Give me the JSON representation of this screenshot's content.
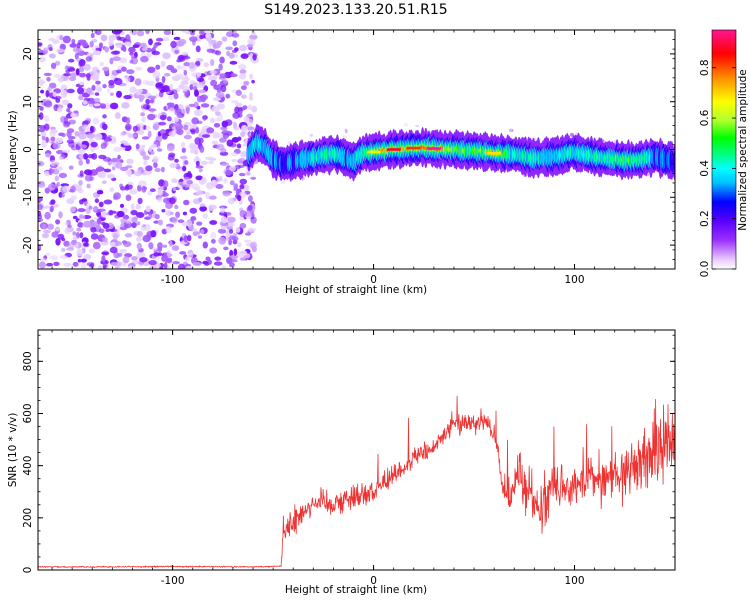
{
  "title": "S149.2023.133.20.51.R15",
  "chart_data": [
    {
      "type": "heatmap",
      "xlabel": "Height of straight line (km)",
      "ylabel": "Frequency (Hz)",
      "xlim": [
        -167,
        150
      ],
      "ylim": [
        -25,
        25
      ],
      "xticks": [
        -100,
        0,
        100
      ],
      "yticks": [
        -20,
        -10,
        0,
        10,
        20
      ],
      "colorbar": {
        "label": "Normalized spectral amplitude",
        "range": [
          0,
          0.95
        ],
        "ticks": [
          0.0,
          0.2,
          0.4,
          0.6,
          0.8
        ],
        "tick_labels": [
          "0.0",
          "0.2",
          "0.4",
          "0.6",
          "0.8"
        ],
        "colormap": [
          "#ffffff",
          "#e9c9ff",
          "#9b30ff",
          "#5a00ff",
          "#0000ff",
          "#00bfff",
          "#00ffff",
          "#00ff7f",
          "#00ff00",
          "#adff2f",
          "#ffff00",
          "#ff8c00",
          "#ff0000",
          "#ff1493"
        ]
      },
      "ridge": {
        "x": [
          -62,
          -58,
          -54,
          -50,
          -45,
          -40,
          -35,
          -30,
          -25,
          -20,
          -15,
          -10,
          -5,
          0,
          10,
          20,
          30,
          40,
          50,
          60,
          70,
          80,
          90,
          100,
          110,
          120,
          130,
          140,
          150
        ],
        "y": [
          -1,
          1.5,
          0.5,
          -2,
          -3,
          -2.5,
          -2,
          -1.8,
          -1.2,
          -0.8,
          -1.5,
          -2.5,
          -0.8,
          -0.5,
          0,
          0.3,
          0.2,
          0,
          -0.3,
          -0.8,
          -1,
          -1.8,
          -1.5,
          -0.5,
          -1.5,
          -2,
          -2.3,
          -1.5,
          -2.5
        ],
        "peak_amplitude": [
          0.35,
          0.45,
          0.4,
          0.35,
          0.3,
          0.35,
          0.4,
          0.45,
          0.45,
          0.5,
          0.4,
          0.35,
          0.5,
          0.7,
          0.9,
          0.85,
          0.95,
          0.6,
          0.55,
          0.75,
          0.5,
          0.45,
          0.4,
          0.45,
          0.5,
          0.55,
          0.6,
          0.35,
          0.3
        ]
      },
      "noise_region_x": [
        -167,
        -62
      ]
    },
    {
      "type": "line",
      "xlabel": "Height of straight line (km)",
      "ylabel": "SNR (10 * v/v)",
      "xlim": [
        -167,
        150
      ],
      "ylim": [
        0,
        920
      ],
      "xticks": [
        -100,
        0,
        100
      ],
      "yticks": [
        0,
        200,
        400,
        600,
        800
      ],
      "color": "#ee3333",
      "series": [
        {
          "x": [
            -167,
            -150,
            -100,
            -60,
            -46,
            -45,
            -40,
            -35,
            -30,
            -20,
            -10,
            0,
            10,
            15,
            20,
            30,
            40,
            50,
            55,
            60,
            62,
            64,
            68,
            72,
            75,
            78,
            80,
            85,
            90,
            95,
            100,
            105,
            110,
            115,
            120,
            125,
            130,
            135,
            140,
            145,
            150
          ],
          "y": [
            12,
            12,
            13,
            12,
            15,
            150,
            180,
            230,
            260,
            260,
            280,
            300,
            370,
            390,
            430,
            470,
            560,
            570,
            575,
            520,
            420,
            330,
            260,
            400,
            280,
            300,
            260,
            270,
            350,
            300,
            310,
            340,
            360,
            340,
            370,
            380,
            400,
            430,
            460,
            480,
            500
          ],
          "noise_amplitude": [
            3,
            3,
            3,
            3,
            3,
            80,
            80,
            80,
            70,
            70,
            70,
            60,
            60,
            60,
            60,
            60,
            60,
            60,
            50,
            50,
            60,
            90,
            90,
            120,
            130,
            130,
            130,
            140,
            120,
            110,
            110,
            100,
            110,
            120,
            130,
            150,
            160,
            180,
            200,
            220,
            250
          ]
        }
      ]
    }
  ]
}
